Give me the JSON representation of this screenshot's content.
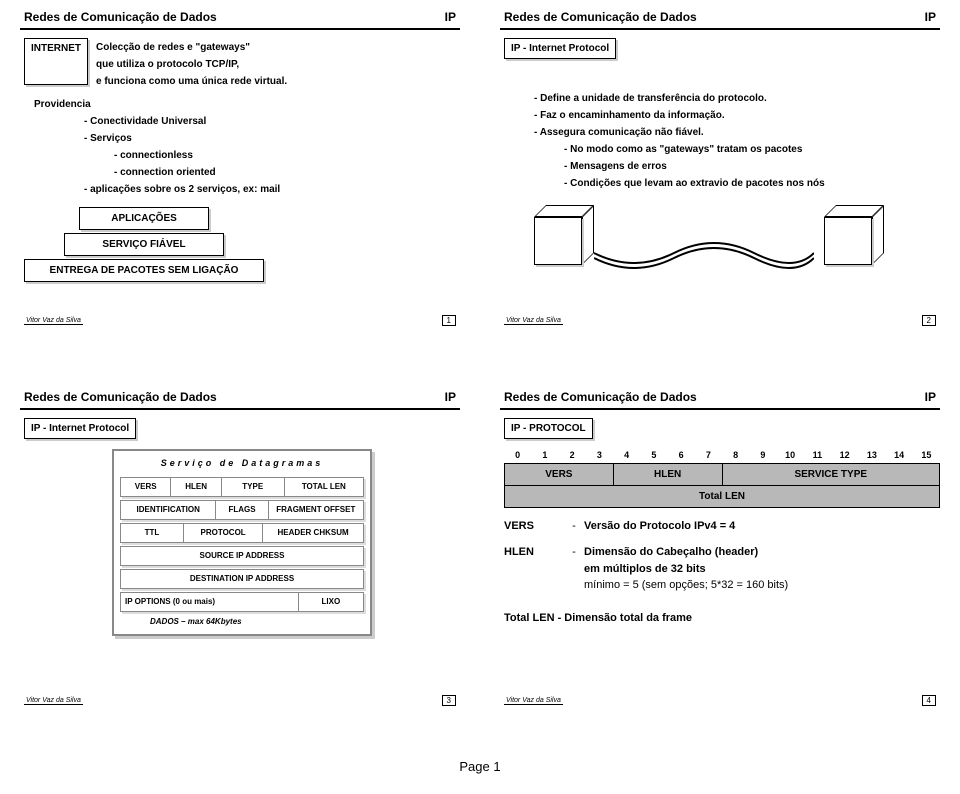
{
  "common": {
    "header_left": "Redes de Comunicação de Dados",
    "header_right": "IP",
    "footer_author": "Vitor Vaz da Silva"
  },
  "page_label": "Page 1",
  "slide1": {
    "num": "1",
    "tag": "INTERNET",
    "intro_l1": "Colecção de redes e \"gateways\"",
    "intro_l2": "que utiliza o protocolo TCP/IP,",
    "intro_l3": "e funciona como uma única rede virtual.",
    "prov": "Providencia",
    "b1": "- Conectividade Universal",
    "b2": "- Serviços",
    "b2a": "- connectionless",
    "b2b": "- connection oriented",
    "b3": "- aplicações sobre os 2 serviços, ex: mail",
    "stack1": "APLICAÇÕES",
    "stack2": "SERVIÇO FIÁVEL",
    "stack3": "ENTREGA DE PACOTES SEM LIGAÇÃO"
  },
  "slide2": {
    "num": "2",
    "tag": "IP - Internet Protocol",
    "b1": "- Define a unidade de transferência do protocolo.",
    "b2": "- Faz o encaminhamento da informação.",
    "b3": "- Assegura comunicação não fiável.",
    "b3a": "- No modo como as \"gateways\" tratam os pacotes",
    "b3b": "- Mensagens de erros",
    "b3c": "- Condições que levam ao extravio de pacotes nos nós"
  },
  "slide3": {
    "num": "3",
    "tag": "IP - Internet Protocol",
    "title": "Serviço de Datagramas",
    "r1": [
      "VERS",
      "HLEN",
      "TYPE",
      "TOTAL LEN"
    ],
    "r2": [
      "IDENTIFICATION",
      "FLAGS",
      "FRAGMENT OFFSET"
    ],
    "r3": [
      "TTL",
      "PROTOCOL",
      "HEADER CHKSUM"
    ],
    "r4": "SOURCE IP ADDRESS",
    "r5": "DESTINATION IP ADDRESS",
    "r6": [
      "IP OPTIONS (0 ou mais)",
      "LIXO"
    ],
    "r7": "DADOS – max 64Kbytes"
  },
  "slide4": {
    "num": "4",
    "tag": "IP - PROTOCOL",
    "bits": [
      "0",
      "1",
      "2",
      "3",
      "4",
      "5",
      "6",
      "7",
      "8",
      "9",
      "10",
      "11",
      "12",
      "13",
      "14",
      "15"
    ],
    "row1": [
      "VERS",
      "HLEN",
      "SERVICE TYPE"
    ],
    "row2": "Total LEN",
    "d1_term": "VERS",
    "d1_desc": "Versão do Protocolo IPv4 = 4",
    "d2_term": "HLEN",
    "d2_desc_l1": "Dimensão do Cabeçalho (header)",
    "d2_desc_l2": "em múltiplos de 32 bits",
    "d2_desc_l3": "mínimo = 5 (sem opções; 5*32 = 160 bits)",
    "d3": "Total LEN - Dimensão total da frame"
  }
}
